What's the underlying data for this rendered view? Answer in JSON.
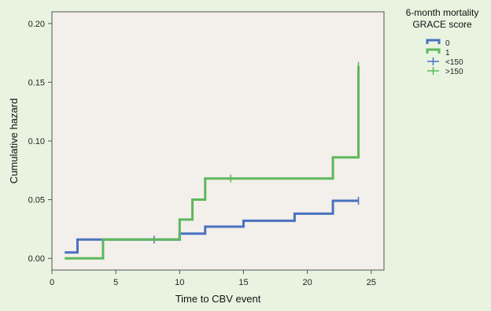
{
  "chart_data": {
    "type": "line",
    "title": "",
    "xlabel": "Time to CBV event",
    "ylabel": "Cumulative hazard",
    "xlim": [
      0,
      26
    ],
    "ylim": [
      -0.01,
      0.21
    ],
    "x_ticks": [
      0,
      5,
      10,
      15,
      20,
      25
    ],
    "y_ticks": [
      0.0,
      0.05,
      0.1,
      0.15,
      0.2
    ],
    "x_tick_labels": [
      "0",
      "5",
      "10",
      "15",
      "20",
      "25"
    ],
    "y_tick_labels": [
      "0.00",
      "0.05",
      "0.10",
      "0.15",
      "0.20"
    ],
    "grid": false,
    "legend": {
      "placement": "outside-top-right",
      "title_line1": "6-month mortality",
      "title_line2": "GRACE score",
      "entries": [
        {
          "label": "0",
          "kind": "step",
          "color": "#4a72c0"
        },
        {
          "label": "1",
          "kind": "step",
          "color": "#5cb85c"
        },
        {
          "label": "<150",
          "kind": "censor",
          "color": "#4a72c0"
        },
        {
          "label": ">150",
          "kind": "censor",
          "color": "#5cb85c"
        }
      ]
    },
    "series": [
      {
        "color": "#4a72c0",
        "steps": [
          [
            1,
            0.005
          ],
          [
            2,
            0.016
          ],
          [
            10,
            0.021
          ],
          [
            12,
            0.027
          ],
          [
            15,
            0.032
          ],
          [
            19,
            0.038
          ],
          [
            22,
            0.049
          ],
          [
            24,
            0.049
          ]
        ],
        "censored": [
          [
            8,
            0.016
          ],
          [
            24,
            0.049
          ]
        ]
      },
      {
        "color": "#5cb85c",
        "steps": [
          [
            1,
            0.0
          ],
          [
            4,
            0.016
          ],
          [
            10,
            0.033
          ],
          [
            11,
            0.05
          ],
          [
            12,
            0.068
          ],
          [
            22,
            0.086
          ],
          [
            24,
            0.164
          ]
        ],
        "censored": [
          [
            14,
            0.068
          ],
          [
            24,
            0.164
          ]
        ]
      }
    ],
    "plot_background": "#f3efea",
    "page_background": "#e8f4e0"
  }
}
